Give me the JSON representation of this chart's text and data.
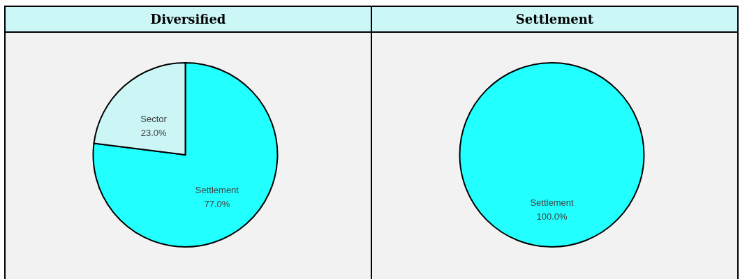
{
  "chart_data": [
    {
      "type": "pie",
      "title": "Diversified",
      "categories": [
        "Settlement",
        "Sector"
      ],
      "values": [
        77.0,
        23.0
      ],
      "colors": [
        "#22ffff",
        "#ccf5f5"
      ],
      "value_labels": [
        "77.0%",
        "23.0%"
      ]
    },
    {
      "type": "pie",
      "title": "Settlement",
      "categories": [
        "Settlement"
      ],
      "values": [
        100.0
      ],
      "colors": [
        "#22ffff"
      ],
      "value_labels": [
        "100.0%"
      ]
    }
  ]
}
